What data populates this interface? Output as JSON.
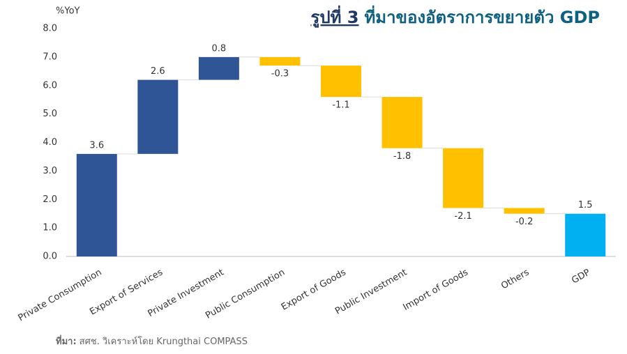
{
  "chart_data": {
    "type": "waterfall",
    "figure_label": "รูปที่ 3",
    "title": "ที่มาของอัตราการขยายตัว GDP",
    "y_label": "%YoY",
    "categories": [
      "Private Consumption",
      "Export of Services",
      "Private Investment",
      "Public Consumption",
      "Export of Goods",
      "Public Investment",
      "Import of Goods",
      "Others",
      "GDP"
    ],
    "values": [
      3.6,
      2.6,
      0.8,
      -0.3,
      -1.1,
      -1.8,
      -2.1,
      -0.2,
      1.5
    ],
    "is_total": [
      false,
      false,
      false,
      false,
      false,
      false,
      false,
      false,
      true
    ],
    "colors": [
      "#2f5597",
      "#2f5597",
      "#2f5597",
      "#ffc000",
      "#ffc000",
      "#ffc000",
      "#ffc000",
      "#ffc000",
      "#00b0f0"
    ],
    "ylim": [
      0,
      8
    ],
    "yticks": [
      {
        "value": 0,
        "label": "0.0"
      },
      {
        "value": 1,
        "label": "1.0"
      },
      {
        "value": 2,
        "label": "2.0"
      },
      {
        "value": 3,
        "label": "3.0"
      },
      {
        "value": 4,
        "label": "4.0"
      },
      {
        "value": 5,
        "label": "5.0"
      },
      {
        "value": 6,
        "label": "6.0"
      },
      {
        "value": 7,
        "label": "7.0"
      },
      {
        "value": 8,
        "label": "8.0"
      }
    ],
    "source_label": "ที่มา:",
    "source": "สศช. วิเคราะห์โดย Krungthai COMPASS"
  }
}
